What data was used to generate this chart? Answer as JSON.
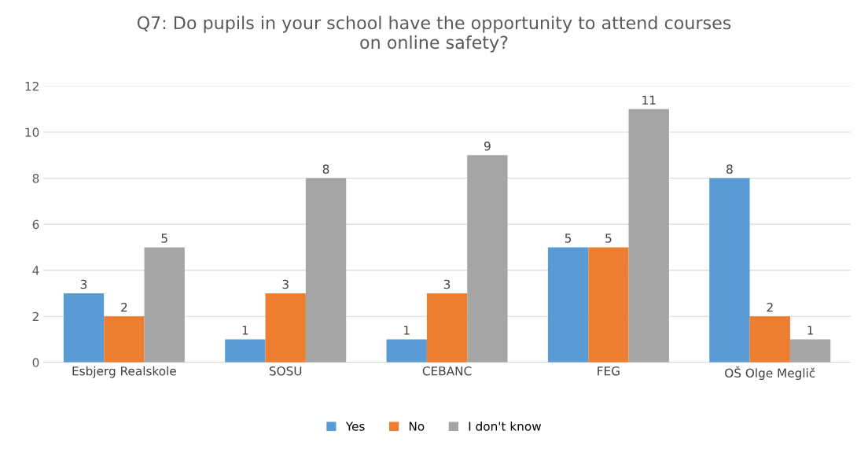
{
  "chart_data": {
    "type": "bar",
    "title": "Q7: Do pupils in your school have the opportunity to attend courses\non online safety?",
    "categories": [
      "Esbjerg Realskole",
      "SOSU",
      "CEBANC",
      "FEG",
      "OŠ Olge Meglič"
    ],
    "series": [
      {
        "name": "Yes",
        "color": "#5b9bd5",
        "values": [
          3,
          1,
          1,
          5,
          8
        ]
      },
      {
        "name": "No",
        "color": "#ed7d31",
        "values": [
          2,
          3,
          3,
          5,
          2
        ]
      },
      {
        "name": "I don't know",
        "color": "#a5a5a5",
        "values": [
          5,
          8,
          9,
          11,
          1
        ]
      }
    ],
    "ylim": [
      0,
      12
    ],
    "yticks": [
      0,
      2,
      4,
      6,
      8,
      10,
      12
    ],
    "grid": "y",
    "legend": "bottom",
    "data_labels": true
  }
}
